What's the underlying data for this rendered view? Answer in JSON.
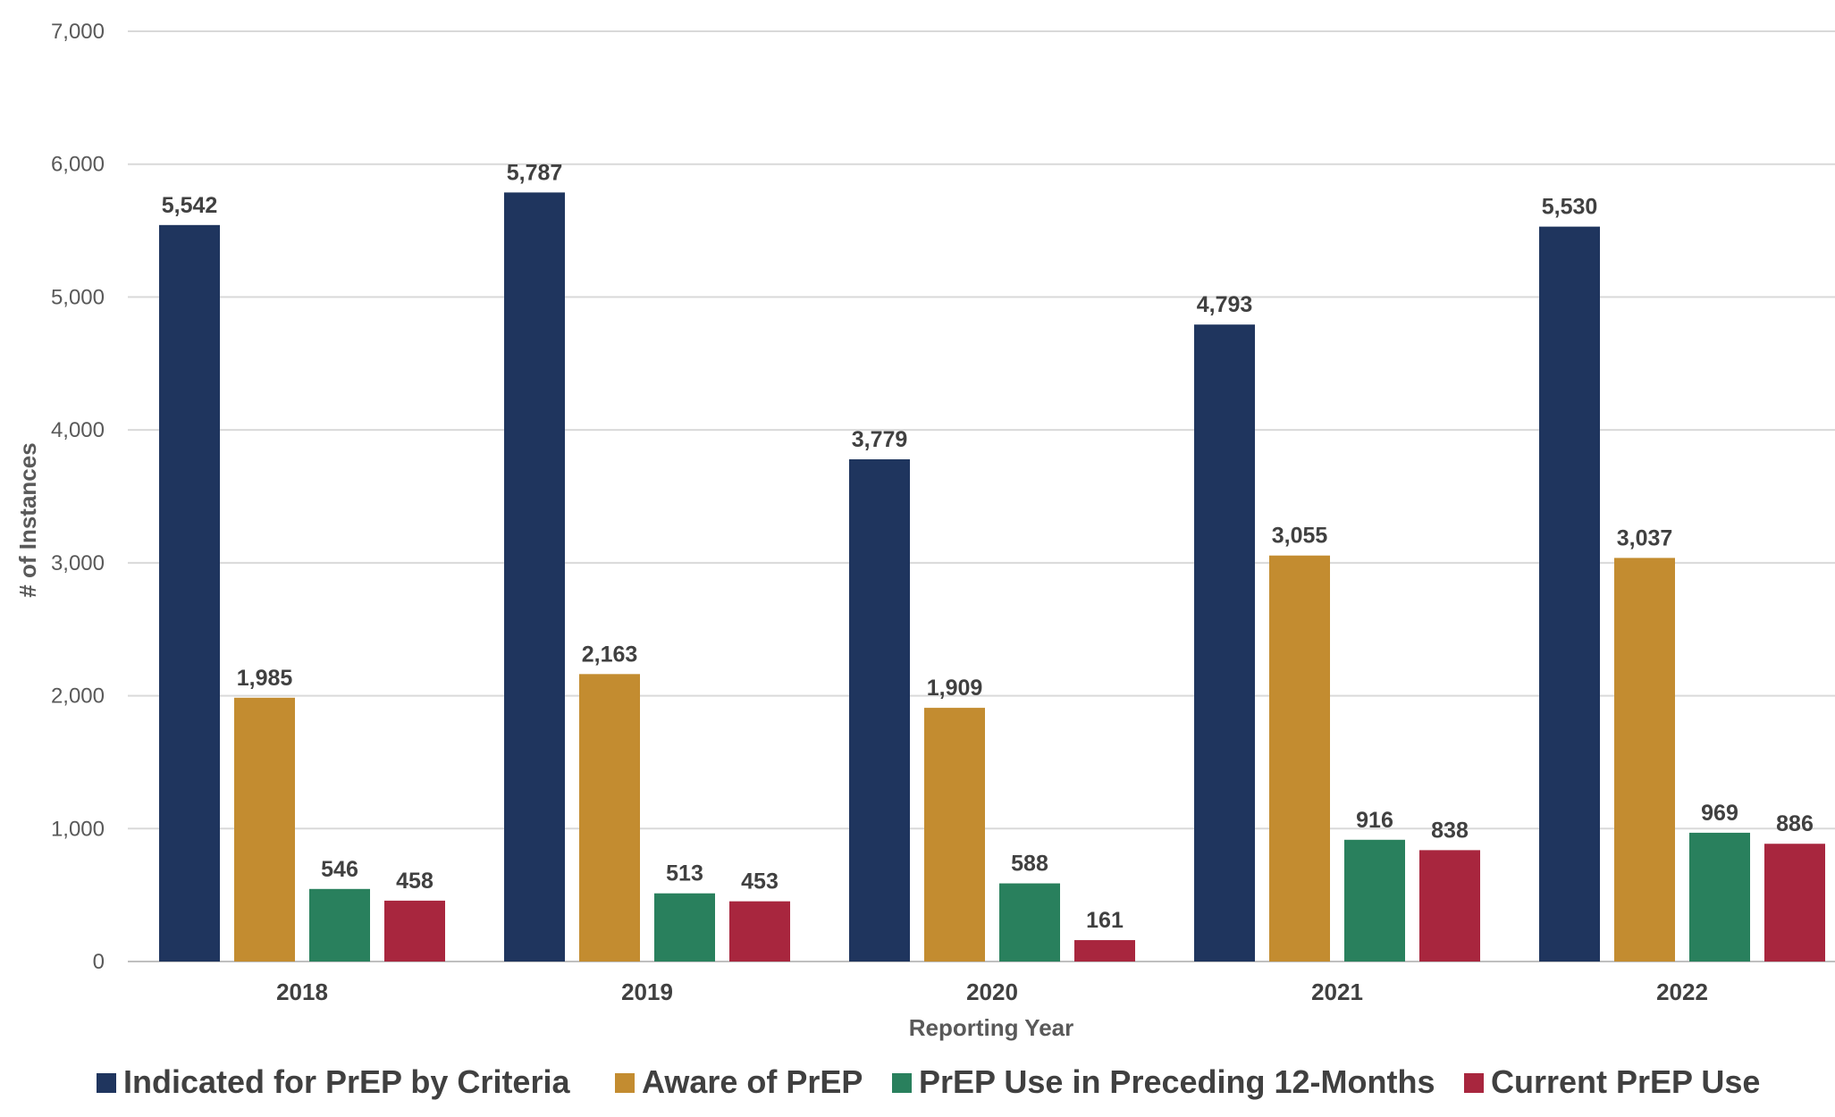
{
  "chart_data": {
    "type": "bar",
    "title": "",
    "xlabel": "Reporting Year",
    "ylabel": "# of Instances",
    "ylim": [
      0,
      7000
    ],
    "yticks": [
      0,
      1000,
      2000,
      3000,
      4000,
      5000,
      6000,
      7000
    ],
    "ytick_labels": [
      "0",
      "1,000",
      "2,000",
      "3,000",
      "4,000",
      "5,000",
      "6,000",
      "7,000"
    ],
    "grid": true,
    "legend_position": "bottom",
    "categories": [
      "2018",
      "2019",
      "2020",
      "2021",
      "2022"
    ],
    "series": [
      {
        "name": "Indicated for PrEP by Criteria",
        "color": "#1f355e",
        "values": [
          5542,
          5787,
          3779,
          4793,
          5530
        ],
        "labels": [
          "5,542",
          "5,787",
          "3,779",
          "4,793",
          "5,530"
        ]
      },
      {
        "name": "Aware of PrEP",
        "color": "#c38c30",
        "values": [
          1985,
          2163,
          1909,
          3055,
          3037
        ],
        "labels": [
          "1,985",
          "2,163",
          "1,909",
          "3,055",
          "3,037"
        ]
      },
      {
        "name": "PrEP Use in Preceding 12-Months",
        "color": "#29805d",
        "values": [
          546,
          513,
          588,
          916,
          969
        ],
        "labels": [
          "546",
          "513",
          "588",
          "916",
          "969"
        ]
      },
      {
        "name": "Current PrEP Use",
        "color": "#a8263e",
        "values": [
          458,
          453,
          161,
          838,
          886
        ],
        "labels": [
          "458",
          "453",
          "161",
          "838",
          "886"
        ]
      }
    ]
  }
}
